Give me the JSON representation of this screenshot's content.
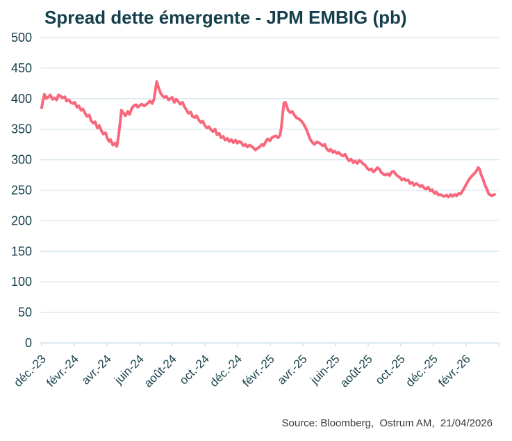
{
  "title": "Spread dette émergente - JPM EMBIG (pb)",
  "source": "Source: Bloomberg,  Ostrum AM,  21/04/2026",
  "colors": {
    "background": "#FFFFFF",
    "title_text": "#153F4B",
    "axis_label_text": "#163F4A",
    "line": "#F8687C",
    "gridline": "#D8E7EF",
    "axis_line": "#C6DDE9",
    "source_text": "#3A3A3A"
  },
  "chart_data": {
    "type": "line",
    "title": "Spread dette émergente - JPM EMBIG (pb)",
    "xlabel": "",
    "ylabel": "",
    "unit": "pb",
    "ylim": [
      0,
      500
    ],
    "y_ticks": [
      500,
      450,
      400,
      350,
      300,
      250,
      200,
      150,
      100,
      50,
      0
    ],
    "x_tick_labels": [
      "déc.-23",
      "févr.-24",
      "avr.-24",
      "juin-24",
      "août-24",
      "oct.-24",
      "déc.-24",
      "févr.-25",
      "avr.-25",
      "juin-25",
      "août-25",
      "oct.-25",
      "déc.-25",
      "févr.-26"
    ],
    "x_domain": [
      "déc. 2023",
      "21/04/2026"
    ],
    "grid": "horizontal",
    "legend_position": "none",
    "series": [
      {
        "name": "Spread JPM EMBIG (pb)",
        "x_unit": "percent_of_time_range",
        "points": [
          [
            0,
            385
          ],
          [
            0.3,
            398
          ],
          [
            0.6,
            407
          ],
          [
            1,
            400
          ],
          [
            1.5,
            403
          ],
          [
            1.9,
            406
          ],
          [
            2.4,
            399
          ],
          [
            2.8,
            401
          ],
          [
            3.3,
            398
          ],
          [
            3.7,
            406
          ],
          [
            4.2,
            404
          ],
          [
            4.6,
            401
          ],
          [
            5.1,
            403
          ],
          [
            5.5,
            396
          ],
          [
            6,
            398
          ],
          [
            6.4,
            394
          ],
          [
            6.9,
            392
          ],
          [
            7.3,
            394
          ],
          [
            7.8,
            386
          ],
          [
            8.2,
            388
          ],
          [
            8.7,
            381
          ],
          [
            9.1,
            383
          ],
          [
            9.6,
            376
          ],
          [
            10,
            371
          ],
          [
            10.5,
            373
          ],
          [
            10.9,
            364
          ],
          [
            11.4,
            360
          ],
          [
            11.8,
            362
          ],
          [
            12.3,
            352
          ],
          [
            12.7,
            356
          ],
          [
            13.2,
            347
          ],
          [
            13.6,
            342
          ],
          [
            14.1,
            344
          ],
          [
            14.5,
            335
          ],
          [
            14.9,
            330
          ],
          [
            15.2,
            333
          ],
          [
            15.7,
            324
          ],
          [
            16.1,
            327
          ],
          [
            16.6,
            322
          ],
          [
            17,
            340
          ],
          [
            17.4,
            366
          ],
          [
            17.6,
            381
          ],
          [
            18.1,
            376
          ],
          [
            18.5,
            372
          ],
          [
            19,
            379
          ],
          [
            19.4,
            374
          ],
          [
            19.9,
            384
          ],
          [
            20.3,
            388
          ],
          [
            20.8,
            390
          ],
          [
            21.2,
            386
          ],
          [
            21.7,
            389
          ],
          [
            22.1,
            391
          ],
          [
            22.6,
            388
          ],
          [
            23,
            390
          ],
          [
            23.5,
            393
          ],
          [
            23.9,
            396
          ],
          [
            24.4,
            392
          ],
          [
            24.8,
            399
          ],
          [
            25.1,
            414
          ],
          [
            25.4,
            428
          ],
          [
            25.7,
            420
          ],
          [
            26.2,
            410
          ],
          [
            26.6,
            405
          ],
          [
            27.1,
            402
          ],
          [
            27.5,
            404
          ],
          [
            28,
            398
          ],
          [
            28.4,
            400
          ],
          [
            28.8,
            402
          ],
          [
            29.3,
            394
          ],
          [
            29.7,
            399
          ],
          [
            30.2,
            395
          ],
          [
            30.6,
            391
          ],
          [
            31.1,
            394
          ],
          [
            31.5,
            387
          ],
          [
            32,
            381
          ],
          [
            32.4,
            376
          ],
          [
            32.9,
            378
          ],
          [
            33.3,
            371
          ],
          [
            33.8,
            369
          ],
          [
            34.2,
            372
          ],
          [
            34.7,
            365
          ],
          [
            35.1,
            361
          ],
          [
            35.6,
            363
          ],
          [
            36,
            356
          ],
          [
            36.5,
            352
          ],
          [
            36.9,
            354
          ],
          [
            37.4,
            349
          ],
          [
            37.8,
            346
          ],
          [
            38.3,
            350
          ],
          [
            38.7,
            341
          ],
          [
            39.2,
            343
          ],
          [
            39.6,
            336
          ],
          [
            40.1,
            338
          ],
          [
            40.5,
            332
          ],
          [
            41,
            335
          ],
          [
            41.4,
            330
          ],
          [
            41.9,
            333
          ],
          [
            42.3,
            328
          ],
          [
            42.8,
            332
          ],
          [
            43.2,
            327
          ],
          [
            43.6,
            330
          ],
          [
            44.1,
            328
          ],
          [
            44.5,
            323
          ],
          [
            45,
            325
          ],
          [
            45.4,
            321
          ],
          [
            45.9,
            324
          ],
          [
            46.3,
            322
          ],
          [
            46.8,
            319
          ],
          [
            47.2,
            316
          ],
          [
            47.7,
            319
          ],
          [
            48.1,
            321
          ],
          [
            48.6,
            325
          ],
          [
            49,
            323
          ],
          [
            49.5,
            330
          ],
          [
            49.9,
            334
          ],
          [
            50.4,
            331
          ],
          [
            50.8,
            336
          ],
          [
            51.3,
            338
          ],
          [
            51.7,
            339
          ],
          [
            52.2,
            336
          ],
          [
            52.6,
            340
          ],
          [
            52.9,
            352
          ],
          [
            53.2,
            375
          ],
          [
            53.5,
            393
          ],
          [
            53.8,
            394
          ],
          [
            54.1,
            388
          ],
          [
            54.4,
            381
          ],
          [
            54.9,
            377
          ],
          [
            55.3,
            379
          ],
          [
            55.8,
            373
          ],
          [
            56.2,
            369
          ],
          [
            56.7,
            367
          ],
          [
            57.1,
            365
          ],
          [
            57.5,
            362
          ],
          [
            58,
            356
          ],
          [
            58.4,
            350
          ],
          [
            58.9,
            341
          ],
          [
            59.3,
            333
          ],
          [
            59.8,
            328
          ],
          [
            60.2,
            325
          ],
          [
            60.7,
            329
          ],
          [
            61.1,
            328
          ],
          [
            61.6,
            326
          ],
          [
            62,
            323
          ],
          [
            62.5,
            325
          ],
          [
            62.9,
            318
          ],
          [
            63.4,
            314
          ],
          [
            63.8,
            317
          ],
          [
            64.3,
            312
          ],
          [
            64.7,
            314
          ],
          [
            65.2,
            310
          ],
          [
            65.6,
            312
          ],
          [
            66.1,
            308
          ],
          [
            66.5,
            306
          ],
          [
            67,
            309
          ],
          [
            67.4,
            303
          ],
          [
            67.9,
            298
          ],
          [
            68.3,
            301
          ],
          [
            68.8,
            295
          ],
          [
            69.2,
            298
          ],
          [
            69.7,
            294
          ],
          [
            70.1,
            299
          ],
          [
            70.6,
            296
          ],
          [
            71,
            293
          ],
          [
            71.4,
            291
          ],
          [
            71.9,
            286
          ],
          [
            72.3,
            283
          ],
          [
            72.8,
            285
          ],
          [
            73.2,
            280
          ],
          [
            73.7,
            283
          ],
          [
            74.1,
            287
          ],
          [
            74.6,
            284
          ],
          [
            75,
            279
          ],
          [
            75.5,
            276
          ],
          [
            75.9,
            275
          ],
          [
            76.4,
            277
          ],
          [
            76.8,
            274
          ],
          [
            77.3,
            280
          ],
          [
            77.7,
            281
          ],
          [
            78.2,
            276
          ],
          [
            78.6,
            273
          ],
          [
            79.1,
            271
          ],
          [
            79.5,
            267
          ],
          [
            80,
            269
          ],
          [
            80.4,
            266
          ],
          [
            80.9,
            267
          ],
          [
            81.3,
            261
          ],
          [
            81.8,
            263
          ],
          [
            82.2,
            258
          ],
          [
            82.7,
            261
          ],
          [
            83.1,
            259
          ],
          [
            83.6,
            256
          ],
          [
            84,
            258
          ],
          [
            84.5,
            253
          ],
          [
            84.9,
            252
          ],
          [
            85.3,
            255
          ],
          [
            85.8,
            249
          ],
          [
            86.2,
            251
          ],
          [
            86.7,
            245
          ],
          [
            87.1,
            247
          ],
          [
            87.6,
            242
          ],
          [
            88,
            243
          ],
          [
            88.5,
            241
          ],
          [
            88.9,
            240
          ],
          [
            89.4,
            242
          ],
          [
            89.8,
            239
          ],
          [
            90.3,
            243
          ],
          [
            90.7,
            240
          ],
          [
            91.2,
            243
          ],
          [
            91.6,
            241
          ],
          [
            92.1,
            245
          ],
          [
            92.5,
            244
          ],
          [
            93,
            250
          ],
          [
            93.4,
            255
          ],
          [
            93.9,
            262
          ],
          [
            94.3,
            267
          ],
          [
            94.8,
            272
          ],
          [
            95.2,
            275
          ],
          [
            95.7,
            279
          ],
          [
            96.1,
            283
          ],
          [
            96.4,
            287
          ],
          [
            96.7,
            284
          ],
          [
            97,
            276
          ],
          [
            97.5,
            267
          ],
          [
            97.9,
            258
          ],
          [
            98.4,
            250
          ],
          [
            98.7,
            244
          ],
          [
            99.3,
            241
          ],
          [
            99.7,
            242
          ],
          [
            100,
            243
          ]
        ]
      }
    ]
  }
}
